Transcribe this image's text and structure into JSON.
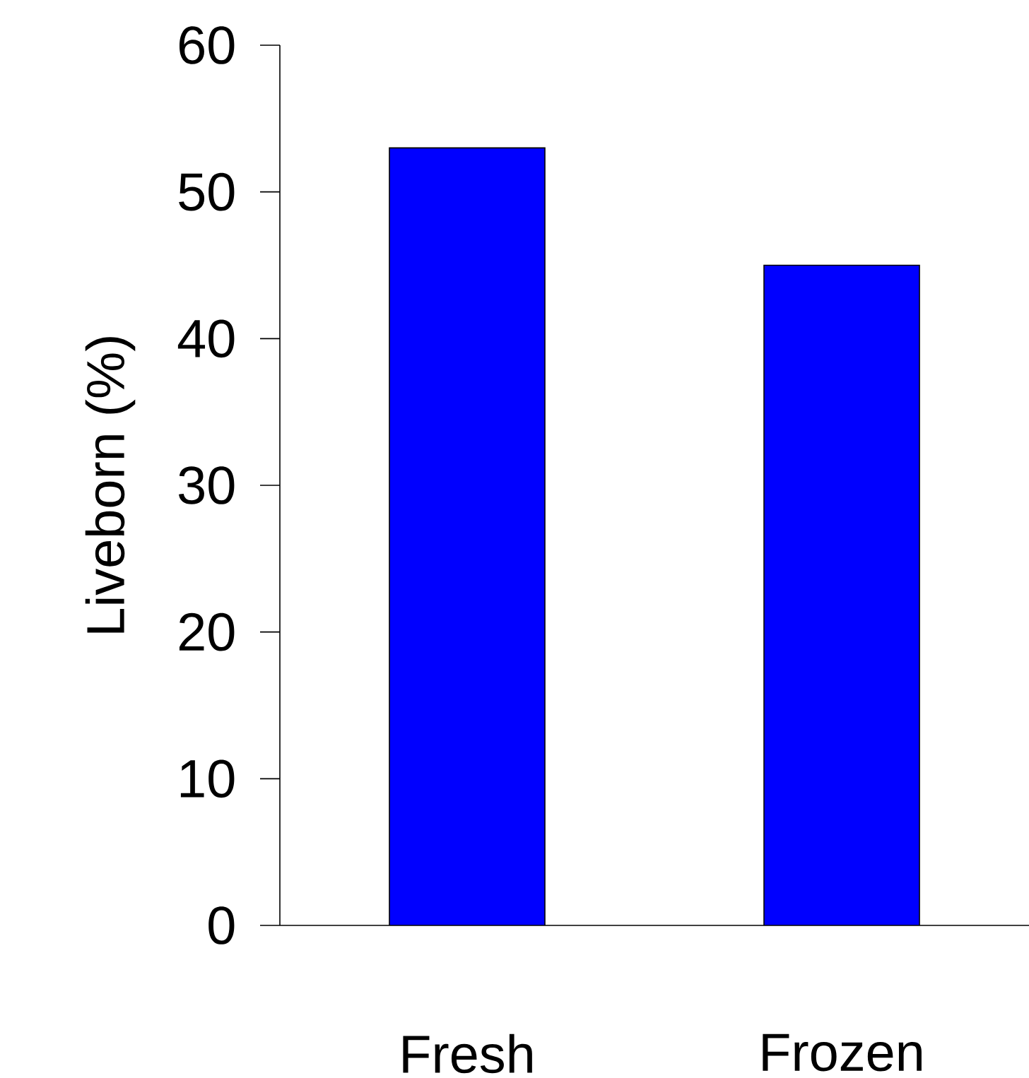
{
  "chart_data": {
    "type": "bar",
    "ylabel": "Liveborn (%)",
    "categories": [
      "Fresh",
      "Frozen"
    ],
    "values": [
      53,
      45
    ],
    "color": "#0000ff",
    "ylim": [
      0,
      60
    ],
    "yticks": [
      0,
      10,
      20,
      30,
      40,
      50,
      60
    ]
  }
}
